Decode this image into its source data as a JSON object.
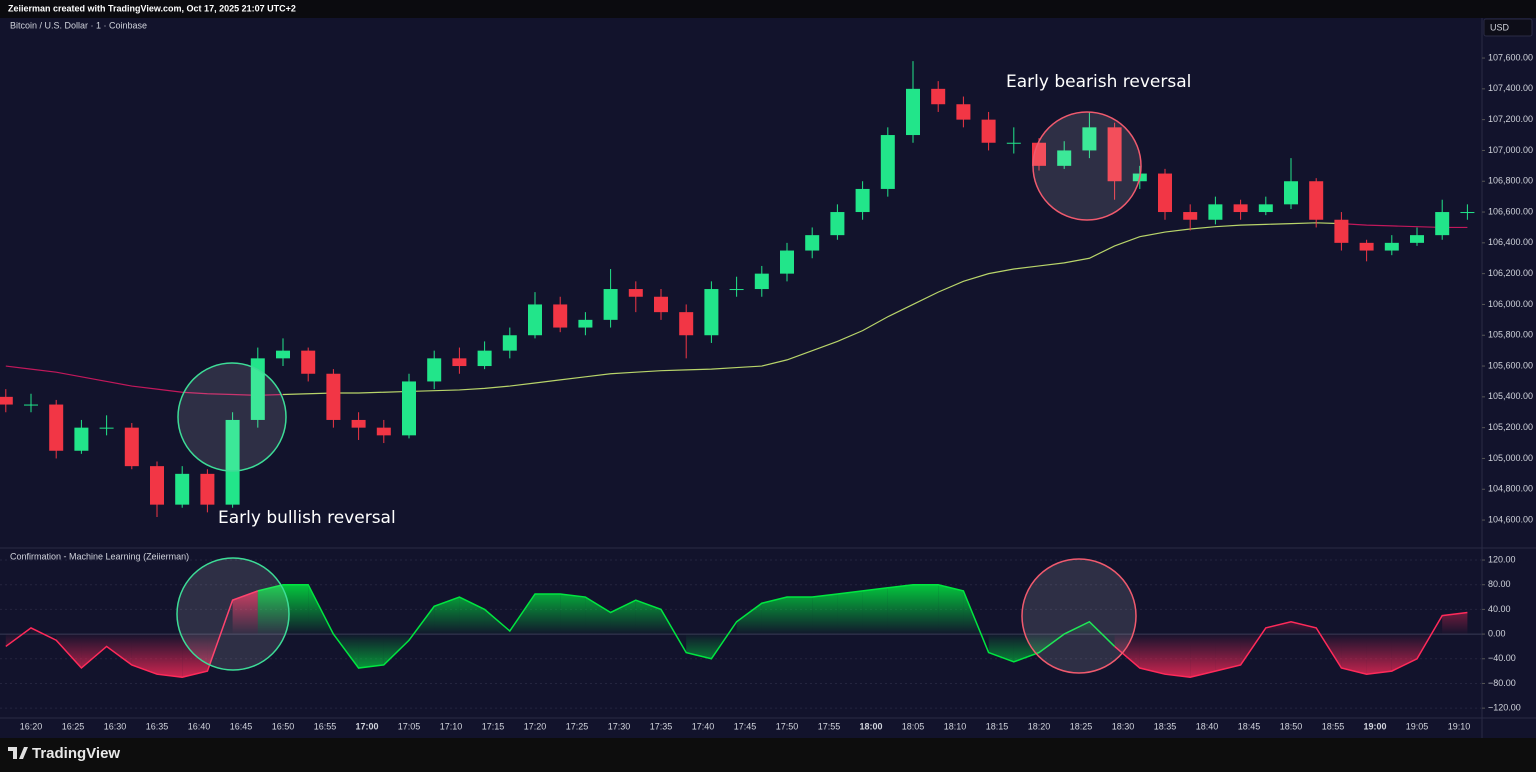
{
  "header": {
    "text": "Zeiierman created with TradingView.com, Oct 17, 2025 21:07 UTC+2"
  },
  "chart_data": [
    {
      "type": "candlestick",
      "title": "Bitcoin / U.S. Dollar · 1 · Coinbase",
      "currency": "USD",
      "up_color": "#22e58a",
      "down_color": "#f23645",
      "open": [
        105400,
        105350,
        105350,
        105050,
        105200,
        105200,
        104950,
        104700,
        104900,
        104700,
        105250,
        105650,
        105700,
        105550,
        105250,
        105200,
        105150,
        105500,
        105650,
        105600,
        105700,
        105800,
        106000,
        105850,
        105900,
        106100,
        106050,
        105950,
        105800,
        106100,
        106100,
        106200,
        106350,
        106450,
        106600,
        106750,
        107100,
        107400,
        107300,
        107200,
        107050,
        107050,
        106900,
        107000,
        107150,
        106800,
        106850,
        106600,
        106550,
        106650,
        106600,
        106650,
        106800,
        106550,
        106400,
        106350,
        106400,
        106450,
        106600
      ],
      "high": [
        105450,
        105420,
        105380,
        105250,
        105280,
        105230,
        104980,
        104950,
        104930,
        105300,
        105720,
        105780,
        105720,
        105580,
        105300,
        105250,
        105550,
        105700,
        105720,
        105760,
        105850,
        106080,
        106050,
        105950,
        106230,
        106150,
        106100,
        106000,
        106150,
        106180,
        106250,
        106400,
        106500,
        106650,
        106800,
        107150,
        107580,
        107450,
        107350,
        107250,
        107150,
        107080,
        107060,
        107250,
        107180,
        106900,
        106880,
        106650,
        106700,
        106680,
        106700,
        106950,
        106820,
        106600,
        106420,
        106450,
        106500,
        106680,
        106650
      ],
      "low": [
        105300,
        105300,
        105000,
        105030,
        105150,
        104930,
        104620,
        104680,
        104650,
        104680,
        105200,
        105600,
        105500,
        105200,
        105120,
        105100,
        105130,
        105450,
        105550,
        105580,
        105650,
        105780,
        105820,
        105800,
        105850,
        105950,
        105900,
        105650,
        105750,
        106050,
        106050,
        106150,
        106300,
        106420,
        106550,
        106700,
        107050,
        107250,
        107150,
        107000,
        106980,
        106870,
        106880,
        106950,
        106680,
        106750,
        106550,
        106480,
        106520,
        106550,
        106580,
        106620,
        106500,
        106350,
        106280,
        106320,
        106380,
        106420,
        106550
      ],
      "close": [
        105350,
        105350,
        105050,
        105200,
        105200,
        104950,
        104700,
        104900,
        104700,
        105250,
        105650,
        105700,
        105550,
        105250,
        105200,
        105150,
        105500,
        105650,
        105600,
        105700,
        105800,
        106000,
        105850,
        105900,
        106100,
        106050,
        105950,
        105800,
        106100,
        106100,
        106200,
        106350,
        106450,
        106600,
        106750,
        107100,
        107400,
        107300,
        107200,
        107050,
        107050,
        106900,
        107000,
        107150,
        106800,
        106850,
        106600,
        106550,
        106650,
        106600,
        106650,
        106800,
        106550,
        106400,
        106350,
        106400,
        106450,
        106600,
        106600
      ],
      "ma": {
        "up_color": "#b8d46a",
        "down_color": "#c2185b",
        "values": [
          105600,
          105580,
          105560,
          105530,
          105500,
          105470,
          105450,
          105430,
          105420,
          105415,
          105410,
          105415,
          105420,
          105425,
          105425,
          105430,
          105435,
          105440,
          105445,
          105455,
          105470,
          105490,
          105510,
          105530,
          105550,
          105560,
          105570,
          105575,
          105580,
          105590,
          105600,
          105640,
          105700,
          105760,
          105830,
          105920,
          106000,
          106080,
          106150,
          106200,
          106230,
          106250,
          106270,
          106300,
          106380,
          106440,
          106470,
          106490,
          106505,
          106515,
          106520,
          106525,
          106530,
          106525,
          106515,
          106510,
          106505,
          106500,
          106500
        ]
      },
      "ylim": [
        104425,
        107860
      ],
      "yticks": [
        {
          "value": 104600,
          "label": "104,600.00"
        },
        {
          "value": 104800,
          "label": "104,800.00"
        },
        {
          "value": 105000,
          "label": "105,000.00"
        },
        {
          "value": 105200,
          "label": "105,200.00"
        },
        {
          "value": 105400,
          "label": "105,400.00"
        },
        {
          "value": 105600,
          "label": "105,600.00"
        },
        {
          "value": 105800,
          "label": "105,800.00"
        },
        {
          "value": 106000,
          "label": "106,000.00"
        },
        {
          "value": 106200,
          "label": "106,200.00"
        },
        {
          "value": 106400,
          "label": "106,400.00"
        },
        {
          "value": 106600,
          "label": "106,600.00"
        },
        {
          "value": 106800,
          "label": "106,800.00"
        },
        {
          "value": 107000,
          "label": "107,000.00"
        },
        {
          "value": 107200,
          "label": "107,200.00"
        },
        {
          "value": 107400,
          "label": "107,400.00"
        },
        {
          "value": 107600,
          "label": "107,600.00"
        }
      ],
      "annotations": [
        "Early bullish reversal",
        "Early bearish reversal"
      ]
    },
    {
      "type": "area",
      "title": "Confirmation - Machine Learning (Zeiierman)",
      "values": [
        -20,
        10,
        -10,
        -55,
        -20,
        -50,
        -65,
        -70,
        -60,
        55,
        70,
        80,
        80,
        0,
        -55,
        -50,
        -10,
        45,
        60,
        40,
        5,
        65,
        65,
        60,
        35,
        55,
        40,
        -30,
        -40,
        20,
        50,
        60,
        60,
        65,
        70,
        75,
        80,
        80,
        70,
        -30,
        -45,
        -30,
        0,
        20,
        -20,
        -55,
        -65,
        -70,
        -60,
        -50,
        10,
        20,
        10,
        -55,
        -65,
        -60,
        -40,
        30,
        35
      ],
      "colors": [
        "#ff2a5a",
        "#ff2a5a",
        "#ff2a5a",
        "#ff2a5a",
        "#ff2a5a",
        "#ff2a5a",
        "#ff2a5a",
        "#ff2a5a",
        "#ff2a5a",
        "#ff2a5a",
        "#00e640",
        "#00e640",
        "#00e640",
        "#00e640",
        "#00e640",
        "#00e640",
        "#00e640",
        "#00e640",
        "#00e640",
        "#00e640",
        "#00e640",
        "#00e640",
        "#00e640",
        "#00e640",
        "#00e640",
        "#00e640",
        "#00e640",
        "#00e640",
        "#00e640",
        "#00e640",
        "#00e640",
        "#00e640",
        "#00e640",
        "#00e640",
        "#00e640",
        "#00e640",
        "#00e640",
        "#00e640",
        "#00e640",
        "#00e640",
        "#00e640",
        "#00e640",
        "#00e640",
        "#00e640",
        "#ff2a5a",
        "#ff2a5a",
        "#ff2a5a",
        "#ff2a5a",
        "#ff2a5a",
        "#ff2a5a",
        "#ff2a5a",
        "#ff2a5a",
        "#ff2a5a",
        "#ff2a5a",
        "#ff2a5a",
        "#ff2a5a",
        "#ff2a5a",
        "#ff2a5a",
        "#ff2a5a"
      ],
      "ylim": [
        -136,
        139.5
      ],
      "yticks": [
        {
          "value": -120,
          "label": "−120.00"
        },
        {
          "value": -80,
          "label": "−80.00"
        },
        {
          "value": -40,
          "label": "−40.00"
        },
        {
          "value": 0,
          "label": "0.00"
        },
        {
          "value": 40,
          "label": "40.00"
        },
        {
          "value": 80,
          "label": "80.00"
        },
        {
          "value": 120,
          "label": "120.00"
        }
      ]
    }
  ],
  "time_axis": {
    "labels": [
      "16:20",
      "16:25",
      "16:30",
      "16:35",
      "16:40",
      "16:45",
      "16:50",
      "16:55",
      "17:00",
      "17:05",
      "17:10",
      "17:15",
      "17:20",
      "17:25",
      "17:30",
      "17:35",
      "17:40",
      "17:45",
      "17:50",
      "17:55",
      "18:00",
      "18:05",
      "18:10",
      "18:15",
      "18:20",
      "18:25",
      "18:30",
      "18:35",
      "18:40",
      "18:45",
      "18:50",
      "18:55",
      "19:00",
      "19:05",
      "19:10"
    ]
  },
  "footer": {
    "logo": "TradingView"
  }
}
